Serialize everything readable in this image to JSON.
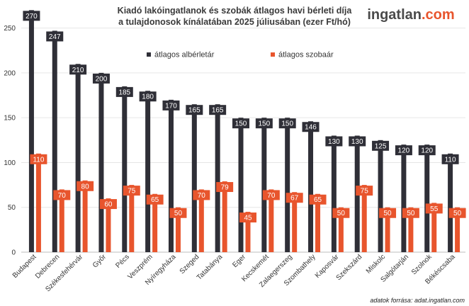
{
  "chart_data": {
    "type": "bar",
    "title_line1": "Kiadó lakóingatlanok és szobák átlagos havi bérleti díja",
    "title_line2": "a tulajdonosok kínálatában 2025 júliusában (ezer Ft/hó)",
    "categories": [
      "Budapest",
      "Debrecen",
      "Székesfehérvár",
      "Győr",
      "Pécs",
      "Veszprém",
      "Nyíregyháza",
      "Szeged",
      "Tatabánya",
      "Eger",
      "Kecskemét",
      "Zalaegerszeg",
      "Szombathely",
      "Kaposvár",
      "Szekszárd",
      "Miskolc",
      "Salgótarján",
      "Szolnok",
      "Békéscsaba"
    ],
    "series": [
      {
        "name": "átlagos albérletár",
        "color": "#2f2f37",
        "values": [
          270,
          247,
          210,
          200,
          185,
          180,
          170,
          165,
          165,
          150,
          150,
          150,
          146,
          130,
          130,
          125,
          120,
          120,
          110
        ]
      },
      {
        "name": "átlagos szobaár",
        "color": "#e8552d",
        "values": [
          110,
          70,
          80,
          60,
          75,
          65,
          50,
          70,
          79,
          45,
          70,
          67,
          65,
          50,
          75,
          50,
          50,
          55,
          50
        ]
      }
    ],
    "yticks": [
      0,
      50,
      100,
      150,
      200,
      250
    ],
    "ylim": [
      0,
      275
    ],
    "grid": true,
    "legend_position": "top-center"
  },
  "brand": {
    "logo_main": "ingatlan",
    "logo_suffix": ".com"
  },
  "source_note": "adatok forrása: adat.ingatlan.com"
}
